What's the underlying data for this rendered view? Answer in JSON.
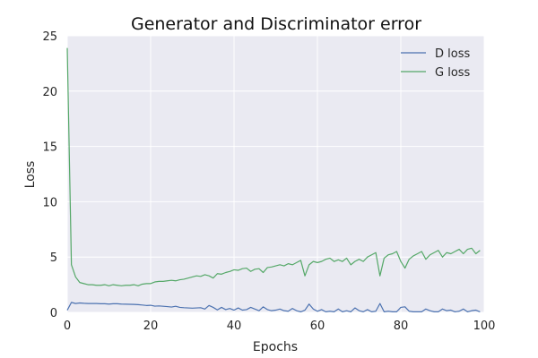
{
  "chart_data": {
    "type": "line",
    "title": "Generator and Discriminator error",
    "xlabel": "Epochs",
    "ylabel": "Loss",
    "xlim": [
      0,
      100
    ],
    "ylim": [
      0,
      25
    ],
    "xticks": [
      0,
      20,
      40,
      60,
      80,
      100
    ],
    "yticks": [
      0,
      5,
      10,
      15,
      20,
      25
    ],
    "grid": true,
    "legend_position": "top-right",
    "plot_background": "#eaeaf2",
    "series": [
      {
        "name": "D loss",
        "color": "#4c72b0",
        "x": [
          0,
          1,
          2,
          3,
          4,
          5,
          6,
          7,
          8,
          9,
          10,
          11,
          12,
          13,
          14,
          15,
          16,
          17,
          18,
          19,
          20,
          21,
          22,
          23,
          24,
          25,
          26,
          27,
          28,
          29,
          30,
          31,
          32,
          33,
          34,
          35,
          36,
          37,
          38,
          39,
          40,
          41,
          42,
          43,
          44,
          45,
          46,
          47,
          48,
          49,
          50,
          51,
          52,
          53,
          54,
          55,
          56,
          57,
          58,
          59,
          60,
          61,
          62,
          63,
          64,
          65,
          66,
          67,
          68,
          69,
          70,
          71,
          72,
          73,
          74,
          75,
          76,
          77,
          78,
          79,
          80,
          81,
          82,
          83,
          84,
          85,
          86,
          87,
          88,
          89,
          90,
          91,
          92,
          93,
          94,
          95,
          96,
          97,
          98,
          99
        ],
        "values": [
          0.2,
          0.9,
          0.8,
          0.85,
          0.82,
          0.8,
          0.8,
          0.8,
          0.78,
          0.78,
          0.75,
          0.78,
          0.78,
          0.75,
          0.74,
          0.73,
          0.72,
          0.7,
          0.66,
          0.62,
          0.64,
          0.56,
          0.58,
          0.55,
          0.52,
          0.48,
          0.55,
          0.45,
          0.42,
          0.4,
          0.38,
          0.4,
          0.42,
          0.3,
          0.62,
          0.45,
          0.22,
          0.45,
          0.25,
          0.35,
          0.2,
          0.4,
          0.2,
          0.25,
          0.45,
          0.3,
          0.15,
          0.5,
          0.25,
          0.15,
          0.2,
          0.3,
          0.15,
          0.1,
          0.35,
          0.15,
          0.05,
          0.2,
          0.75,
          0.3,
          0.1,
          0.25,
          0.05,
          0.1,
          0.05,
          0.3,
          0.05,
          0.15,
          0.05,
          0.4,
          0.15,
          0.05,
          0.25,
          0.05,
          0.1,
          0.8,
          0.05,
          0.1,
          0.05,
          0.05,
          0.45,
          0.5,
          0.1,
          0.05,
          0.05,
          0.05,
          0.3,
          0.15,
          0.05,
          0.05,
          0.3,
          0.15,
          0.2,
          0.05,
          0.1,
          0.3,
          0.05,
          0.15,
          0.2,
          0.05
        ]
      },
      {
        "name": "G loss",
        "color": "#55a868",
        "x": [
          0,
          1,
          2,
          3,
          4,
          5,
          6,
          7,
          8,
          9,
          10,
          11,
          12,
          13,
          14,
          15,
          16,
          17,
          18,
          19,
          20,
          21,
          22,
          23,
          24,
          25,
          26,
          27,
          28,
          29,
          30,
          31,
          32,
          33,
          34,
          35,
          36,
          37,
          38,
          39,
          40,
          41,
          42,
          43,
          44,
          45,
          46,
          47,
          48,
          49,
          50,
          51,
          52,
          53,
          54,
          55,
          56,
          57,
          58,
          59,
          60,
          61,
          62,
          63,
          64,
          65,
          66,
          67,
          68,
          69,
          70,
          71,
          72,
          73,
          74,
          75,
          76,
          77,
          78,
          79,
          80,
          81,
          82,
          83,
          84,
          85,
          86,
          87,
          88,
          89,
          90,
          91,
          92,
          93,
          94,
          95,
          96,
          97,
          98,
          99
        ],
        "values": [
          23.9,
          4.3,
          3.2,
          2.7,
          2.6,
          2.5,
          2.5,
          2.45,
          2.45,
          2.5,
          2.4,
          2.5,
          2.45,
          2.4,
          2.45,
          2.45,
          2.5,
          2.4,
          2.55,
          2.6,
          2.6,
          2.75,
          2.8,
          2.8,
          2.85,
          2.9,
          2.85,
          2.95,
          3.0,
          3.1,
          3.2,
          3.3,
          3.25,
          3.4,
          3.3,
          3.1,
          3.5,
          3.45,
          3.6,
          3.7,
          3.85,
          3.8,
          3.95,
          4.0,
          3.7,
          3.9,
          3.95,
          3.6,
          4.05,
          4.1,
          4.2,
          4.3,
          4.2,
          4.4,
          4.3,
          4.5,
          4.7,
          3.3,
          4.3,
          4.6,
          4.5,
          4.6,
          4.8,
          4.9,
          4.6,
          4.75,
          4.6,
          4.9,
          4.3,
          4.6,
          4.8,
          4.6,
          5.0,
          5.2,
          5.4,
          3.3,
          4.9,
          5.2,
          5.3,
          5.5,
          4.6,
          4.0,
          4.8,
          5.1,
          5.3,
          5.5,
          4.8,
          5.2,
          5.4,
          5.6,
          5.0,
          5.4,
          5.3,
          5.5,
          5.7,
          5.3,
          5.7,
          5.8,
          5.3,
          5.6
        ]
      }
    ]
  }
}
